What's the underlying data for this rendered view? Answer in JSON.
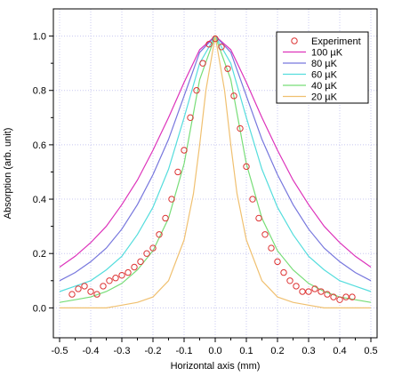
{
  "chart_data": {
    "type": "line",
    "title": "",
    "xlabel": "Horizontal axis (mm)",
    "ylabel": "Absorption (arb. unit)",
    "xlim": [
      -0.52,
      0.52
    ],
    "ylim": [
      -0.11,
      1.1
    ],
    "x_ticks": [
      -0.5,
      -0.4,
      -0.3,
      -0.2,
      -0.1,
      0.0,
      0.1,
      0.2,
      0.3,
      0.4,
      0.5
    ],
    "x_tick_labels": [
      "-0.5",
      "-0.4",
      "-0.3",
      "-0.2",
      "-0.1",
      "0.0",
      "0.1",
      "0.2",
      "0.3",
      "0.4",
      "0.5"
    ],
    "y_ticks": [
      0.0,
      0.2,
      0.4,
      0.6,
      0.8,
      1.0
    ],
    "y_tick_labels": [
      "0.0",
      "0.2",
      "0.4",
      "0.6",
      "0.8",
      "1.0"
    ],
    "grid": true,
    "legend_position": "top-right",
    "series": [
      {
        "name": "100 µK",
        "color": "#dd33bb",
        "kind": "line",
        "x": [
          -0.5,
          -0.45,
          -0.4,
          -0.35,
          -0.3,
          -0.25,
          -0.2,
          -0.15,
          -0.1,
          -0.05,
          0.0,
          0.05,
          0.1,
          0.15,
          0.2,
          0.25,
          0.3,
          0.35,
          0.4,
          0.45,
          0.5
        ],
        "y": [
          0.15,
          0.19,
          0.24,
          0.3,
          0.38,
          0.47,
          0.58,
          0.7,
          0.83,
          0.95,
          1.0,
          0.95,
          0.83,
          0.7,
          0.58,
          0.47,
          0.38,
          0.3,
          0.24,
          0.19,
          0.15
        ]
      },
      {
        "name": "80 µK",
        "color": "#7777dd",
        "kind": "line",
        "x": [
          -0.5,
          -0.45,
          -0.4,
          -0.35,
          -0.3,
          -0.25,
          -0.2,
          -0.15,
          -0.1,
          -0.05,
          0.0,
          0.05,
          0.1,
          0.15,
          0.2,
          0.25,
          0.3,
          0.35,
          0.4,
          0.45,
          0.5
        ],
        "y": [
          0.1,
          0.13,
          0.17,
          0.22,
          0.29,
          0.38,
          0.49,
          0.62,
          0.78,
          0.94,
          1.0,
          0.94,
          0.78,
          0.62,
          0.49,
          0.38,
          0.29,
          0.22,
          0.17,
          0.13,
          0.1
        ]
      },
      {
        "name": "60 µK",
        "color": "#55dddd",
        "kind": "line",
        "x": [
          -0.5,
          -0.45,
          -0.4,
          -0.35,
          -0.3,
          -0.25,
          -0.2,
          -0.15,
          -0.1,
          -0.05,
          0.0,
          0.05,
          0.1,
          0.15,
          0.2,
          0.25,
          0.3,
          0.35,
          0.4,
          0.45,
          0.5
        ],
        "y": [
          0.06,
          0.08,
          0.1,
          0.14,
          0.19,
          0.27,
          0.37,
          0.51,
          0.7,
          0.9,
          1.0,
          0.9,
          0.7,
          0.51,
          0.37,
          0.27,
          0.19,
          0.14,
          0.1,
          0.08,
          0.06
        ]
      },
      {
        "name": "40 µK",
        "color": "#77dd77",
        "kind": "line",
        "x": [
          -0.5,
          -0.45,
          -0.4,
          -0.35,
          -0.3,
          -0.25,
          -0.2,
          -0.15,
          -0.1,
          -0.05,
          0.0,
          0.05,
          0.1,
          0.15,
          0.2,
          0.25,
          0.3,
          0.35,
          0.4,
          0.45,
          0.5
        ],
        "y": [
          0.02,
          0.03,
          0.04,
          0.06,
          0.09,
          0.14,
          0.21,
          0.33,
          0.53,
          0.84,
          1.0,
          0.84,
          0.53,
          0.33,
          0.21,
          0.14,
          0.09,
          0.06,
          0.04,
          0.03,
          0.02
        ]
      },
      {
        "name": "20 µK",
        "color": "#f0c070",
        "kind": "line",
        "x": [
          -0.5,
          -0.45,
          -0.4,
          -0.35,
          -0.3,
          -0.25,
          -0.2,
          -0.15,
          -0.1,
          -0.07,
          -0.05,
          -0.03,
          0.0,
          0.03,
          0.05,
          0.07,
          0.1,
          0.15,
          0.2,
          0.25,
          0.3,
          0.35,
          0.4,
          0.45,
          0.5
        ],
        "y": [
          0.0,
          0.0,
          0.0,
          0.0,
          0.01,
          0.02,
          0.04,
          0.1,
          0.25,
          0.42,
          0.6,
          0.8,
          1.0,
          0.8,
          0.6,
          0.42,
          0.25,
          0.1,
          0.04,
          0.02,
          0.01,
          0.0,
          0.0,
          0.0,
          0.0
        ]
      },
      {
        "name": "Experiment",
        "color": "#dd3333",
        "kind": "scatter",
        "x": [
          -0.46,
          -0.44,
          -0.42,
          -0.4,
          -0.38,
          -0.36,
          -0.34,
          -0.32,
          -0.3,
          -0.28,
          -0.26,
          -0.24,
          -0.22,
          -0.2,
          -0.18,
          -0.16,
          -0.14,
          -0.12,
          -0.1,
          -0.08,
          -0.06,
          -0.04,
          -0.02,
          0.0,
          0.02,
          0.04,
          0.06,
          0.08,
          0.1,
          0.12,
          0.14,
          0.16,
          0.18,
          0.2,
          0.22,
          0.24,
          0.26,
          0.28,
          0.3,
          0.32,
          0.34,
          0.36,
          0.38,
          0.4,
          0.42,
          0.44
        ],
        "y": [
          0.05,
          0.07,
          0.08,
          0.06,
          0.05,
          0.08,
          0.1,
          0.11,
          0.12,
          0.13,
          0.15,
          0.17,
          0.2,
          0.22,
          0.27,
          0.33,
          0.4,
          0.5,
          0.58,
          0.7,
          0.8,
          0.9,
          0.97,
          0.99,
          0.96,
          0.88,
          0.78,
          0.66,
          0.52,
          0.4,
          0.33,
          0.27,
          0.22,
          0.17,
          0.13,
          0.1,
          0.08,
          0.06,
          0.06,
          0.07,
          0.06,
          0.05,
          0.04,
          0.03,
          0.04,
          0.04
        ]
      }
    ]
  }
}
